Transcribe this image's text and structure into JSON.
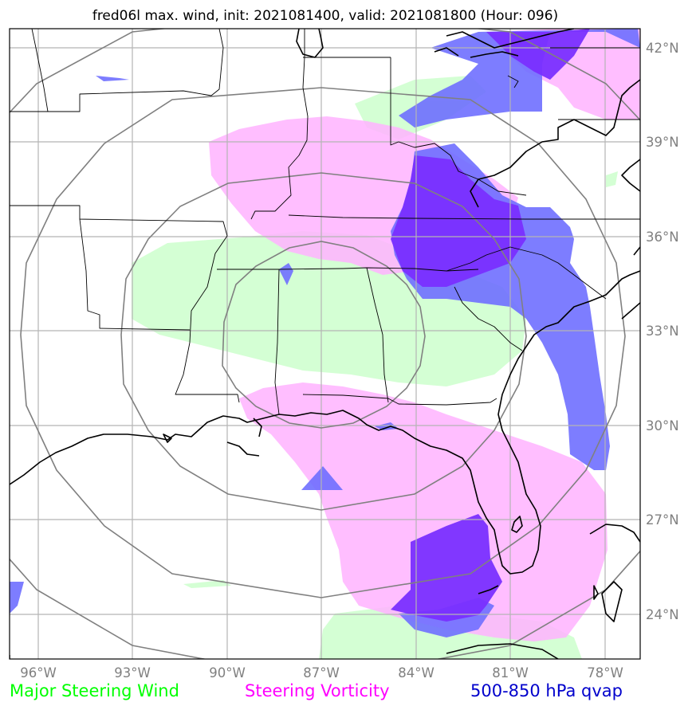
{
  "title": "fred06l max. wind, init: 2021081400, valid: 2021081800 (Hour: 096)",
  "lon_ticks": [
    "96°W",
    "93°W",
    "90°W",
    "87°W",
    "84°W",
    "81°W",
    "78°W"
  ],
  "lat_ticks": [
    "42°N",
    "39°N",
    "36°N",
    "33°N",
    "30°N",
    "27°N",
    "24°N"
  ],
  "legend": [
    {
      "label": "Major Steering Wind",
      "color": "#00ff00"
    },
    {
      "label": "Steering Vorticity",
      "color": "#ff00ff"
    },
    {
      "label": "500-850 hPa qvap",
      "color": "#0000cc"
    }
  ],
  "layers": {
    "steering_wind_color": "#ccffcc",
    "steering_vorticity_color": "#ffb3ff",
    "qvap_color": "#6f6fff",
    "qvap_strong_color": "#7a2fff"
  },
  "map_extent": {
    "lon_min": -96.9,
    "lon_max": -76.8,
    "lat_min": 22.9,
    "lat_max": 42.6
  }
}
